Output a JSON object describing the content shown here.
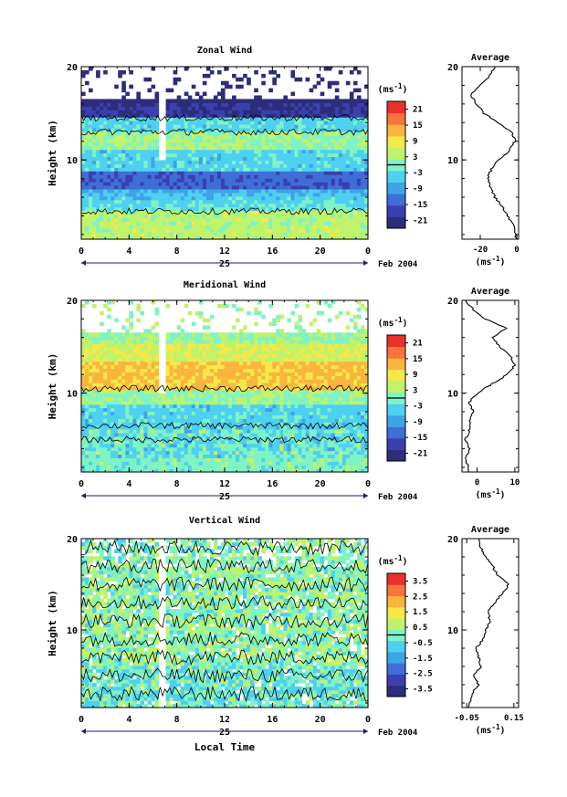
{
  "date_label": "Feb 2004",
  "day_label": "25",
  "xlabel": "Local Time",
  "colors": {
    "palette": [
      "#2d2d7a",
      "#3b3fb0",
      "#3f6fd6",
      "#3fa3e8",
      "#4fd0f0",
      "#7ff3c4",
      "#bff36b",
      "#f5e84b",
      "#f9b53d",
      "#f7743c",
      "#e8332d"
    ],
    "contour": "#000000",
    "axis": "#000000",
    "missing": "#ffffff"
  },
  "chart_data": [
    {
      "type": "heatmap",
      "title": "Zonal Wind",
      "ylabel": "Height (km)",
      "x_ticks": [
        "0",
        "4",
        "8",
        "12",
        "16",
        "20",
        "0"
      ],
      "y_ticks": [
        "20",
        "10"
      ],
      "xlim": [
        0,
        24
      ],
      "ylim": [
        1.5,
        20
      ],
      "colorbar": {
        "unit_base": "(ms",
        "unit_exp": "-1",
        "unit_close": ")",
        "ticks": [
          "21",
          "15",
          "9",
          "3",
          "-3",
          "-9",
          "-15",
          "-21"
        ],
        "range": [
          -24,
          24
        ],
        "zero_line": 0
      },
      "profile": {
        "title": "Average",
        "xlabel_base": "(ms",
        "xlabel_exp": "-1",
        "xlabel_close": ")",
        "x_ticks": [
          "-20",
          "0"
        ],
        "xlim": [
          -30,
          1
        ],
        "y_ticks": [
          "20",
          "10"
        ],
        "points": [
          [
            0,
            1.5
          ],
          [
            -2,
            3
          ],
          [
            -5,
            4
          ],
          [
            -8,
            5
          ],
          [
            -12,
            6
          ],
          [
            -14,
            7
          ],
          [
            -16,
            8
          ],
          [
            -14,
            9
          ],
          [
            -10,
            10
          ],
          [
            -4,
            11
          ],
          [
            -1,
            12
          ],
          [
            -3,
            13
          ],
          [
            -10,
            14
          ],
          [
            -18,
            15
          ],
          [
            -22,
            16
          ],
          [
            -25,
            17
          ],
          [
            -20,
            18
          ],
          [
            -15,
            19
          ],
          [
            -12,
            20
          ]
        ]
      }
    },
    {
      "type": "heatmap",
      "title": "Meridional Wind",
      "ylabel": "Height (km)",
      "x_ticks": [
        "0",
        "4",
        "8",
        "12",
        "16",
        "20",
        "0"
      ],
      "y_ticks": [
        "20",
        "10"
      ],
      "xlim": [
        0,
        24
      ],
      "ylim": [
        1.5,
        20
      ],
      "colorbar": {
        "unit_base": "(ms",
        "unit_exp": "-1",
        "unit_close": ")",
        "ticks": [
          "21",
          "15",
          "9",
          "3",
          "-3",
          "-9",
          "-15",
          "-21"
        ],
        "range": [
          -24,
          24
        ],
        "zero_line": 0
      },
      "profile": {
        "title": "Average",
        "xlabel_base": "(ms",
        "xlabel_exp": "-1",
        "xlabel_close": ")",
        "x_ticks": [
          "0",
          "10"
        ],
        "xlim": [
          -4,
          11
        ],
        "y_ticks": [
          "20",
          "10"
        ],
        "points": [
          [
            -2,
            1.5
          ],
          [
            -3,
            3
          ],
          [
            -2,
            4
          ],
          [
            -3,
            5
          ],
          [
            -2,
            6
          ],
          [
            -2,
            7
          ],
          [
            -1,
            8
          ],
          [
            -2,
            9
          ],
          [
            0,
            10
          ],
          [
            4,
            11
          ],
          [
            8,
            12
          ],
          [
            10,
            13
          ],
          [
            9,
            14
          ],
          [
            6,
            15
          ],
          [
            4,
            16
          ],
          [
            8,
            17
          ],
          [
            2,
            18
          ],
          [
            -1,
            19
          ],
          [
            -3,
            20
          ]
        ]
      }
    },
    {
      "type": "heatmap",
      "title": "Vertical Wind",
      "ylabel": "Height (km)",
      "x_ticks": [
        "0",
        "4",
        "8",
        "12",
        "16",
        "20",
        "0"
      ],
      "y_ticks": [
        "20",
        "10"
      ],
      "xlim": [
        0,
        24
      ],
      "ylim": [
        1.5,
        20
      ],
      "colorbar": {
        "unit_base": "(ms",
        "unit_exp": "-1",
        "unit_close": ")",
        "ticks": [
          "3.5",
          "2.5",
          "1.5",
          "0.5",
          "-0.5",
          "-1.5",
          "-2.5",
          "-3.5"
        ],
        "range": [
          -4,
          4
        ],
        "zero_line": 0
      },
      "profile": {
        "title": "Average",
        "xlabel_base": "(ms",
        "xlabel_exp": "-1",
        "xlabel_close": ")",
        "x_ticks": [
          "-0.05",
          "0.15"
        ],
        "xlim": [
          -0.07,
          0.17
        ],
        "y_ticks": [
          "20",
          "10"
        ],
        "points": [
          [
            -0.04,
            1.5
          ],
          [
            -0.03,
            3
          ],
          [
            0,
            4
          ],
          [
            -0.02,
            5
          ],
          [
            0.01,
            6
          ],
          [
            0,
            7
          ],
          [
            -0.01,
            8
          ],
          [
            0.02,
            9
          ],
          [
            0.03,
            10
          ],
          [
            0.05,
            11
          ],
          [
            0.04,
            12
          ],
          [
            0.07,
            13
          ],
          [
            0.1,
            14
          ],
          [
            0.13,
            15
          ],
          [
            0.08,
            16
          ],
          [
            0.06,
            17
          ],
          [
            0.03,
            18
          ],
          [
            0.01,
            19
          ],
          [
            0,
            20
          ]
        ]
      }
    }
  ]
}
